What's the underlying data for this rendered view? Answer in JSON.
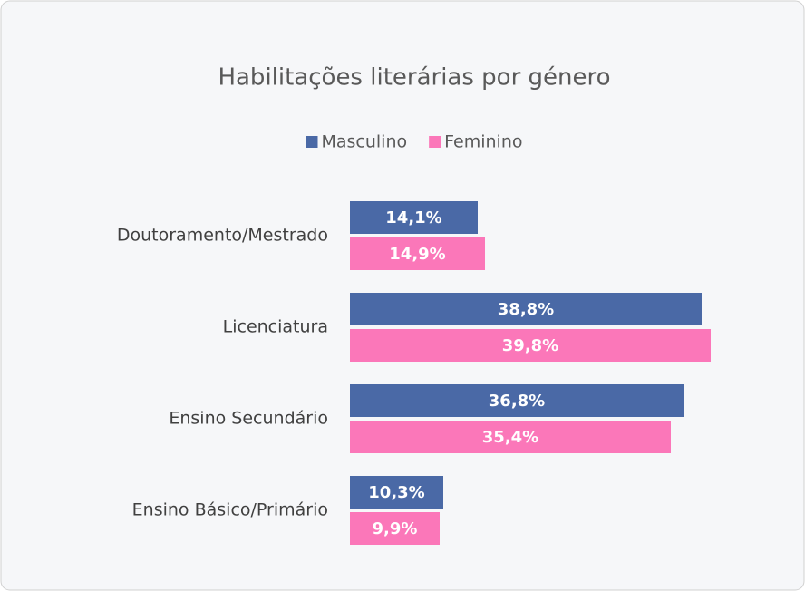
{
  "chart_data": {
    "type": "bar",
    "orientation": "horizontal",
    "title": "Habilitações literárias por género",
    "categories": [
      "Doutoramento/Mestrado",
      "Licenciatura",
      "Ensino Secundário",
      "Ensino Básico/Primário"
    ],
    "series": [
      {
        "name": "Masculino",
        "color": "#4a69a6",
        "values": [
          14.1,
          38.8,
          36.8,
          10.3
        ],
        "value_labels": [
          "14,1%",
          "38,8%",
          "36,8%",
          "10,3%"
        ]
      },
      {
        "name": "Feminino",
        "color": "#fb77b9",
        "values": [
          14.9,
          39.8,
          35.4,
          9.9
        ],
        "value_labels": [
          "14,9%",
          "39,8%",
          "35,4%",
          "9,9%"
        ]
      }
    ],
    "legend": "top"
  }
}
